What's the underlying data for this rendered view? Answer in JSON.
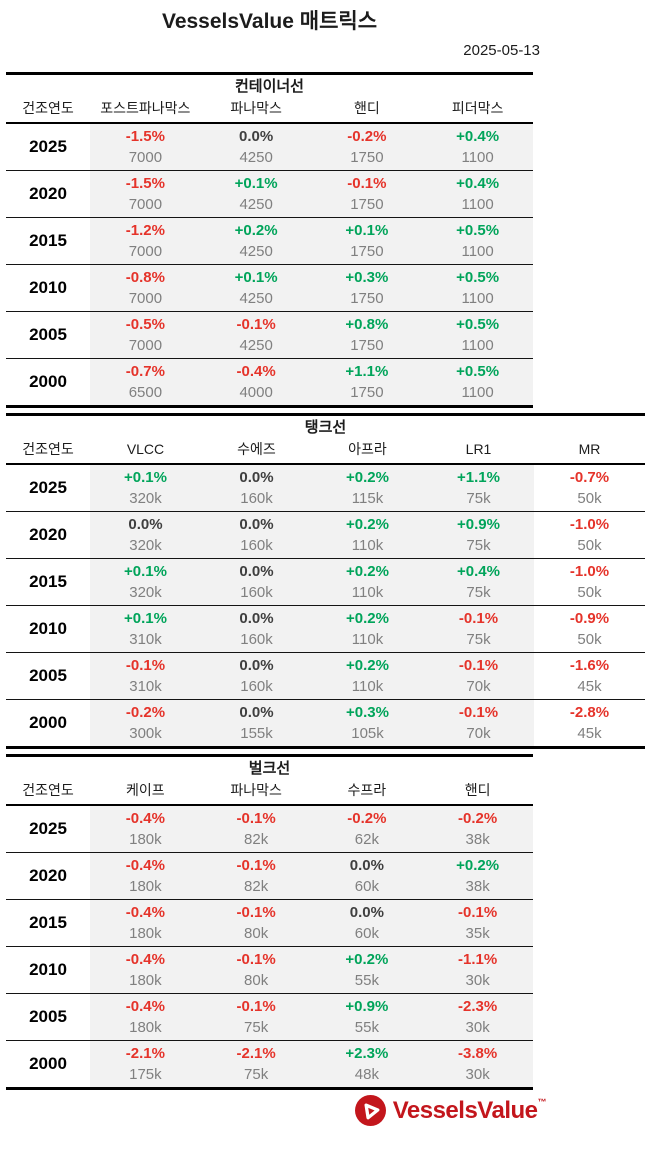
{
  "page": {
    "title": "VesselsValue 매트릭스",
    "date": "2025-05-13"
  },
  "colors": {
    "positive": "#00a45a",
    "negative": "#e5332a",
    "neutral": "#3f3f3f",
    "value_gray": "#808080",
    "row_background": "#f2f2f2",
    "logo_red": "#c3161c"
  },
  "tables": [
    {
      "section_title": "컨테이너선",
      "year_header": "건조연도",
      "columns": [
        "포스트파나막스",
        "파나막스",
        "핸디",
        "피더막스"
      ],
      "rows": [
        {
          "year": "2025",
          "cells": [
            [
              "-1.5%",
              "7000"
            ],
            [
              "0.0%",
              "4250"
            ],
            [
              "-0.2%",
              "1750"
            ],
            [
              "+0.4%",
              "1100"
            ]
          ]
        },
        {
          "year": "2020",
          "cells": [
            [
              "-1.5%",
              "7000"
            ],
            [
              "+0.1%",
              "4250"
            ],
            [
              "-0.1%",
              "1750"
            ],
            [
              "+0.4%",
              "1100"
            ]
          ]
        },
        {
          "year": "2015",
          "cells": [
            [
              "-1.2%",
              "7000"
            ],
            [
              "+0.2%",
              "4250"
            ],
            [
              "+0.1%",
              "1750"
            ],
            [
              "+0.5%",
              "1100"
            ]
          ]
        },
        {
          "year": "2010",
          "cells": [
            [
              "-0.8%",
              "7000"
            ],
            [
              "+0.1%",
              "4250"
            ],
            [
              "+0.3%",
              "1750"
            ],
            [
              "+0.5%",
              "1100"
            ]
          ]
        },
        {
          "year": "2005",
          "cells": [
            [
              "-0.5%",
              "7000"
            ],
            [
              "-0.1%",
              "4250"
            ],
            [
              "+0.8%",
              "1750"
            ],
            [
              "+0.5%",
              "1100"
            ]
          ]
        },
        {
          "year": "2000",
          "cells": [
            [
              "-0.7%",
              "6500"
            ],
            [
              "-0.4%",
              "4000"
            ],
            [
              "+1.1%",
              "1750"
            ],
            [
              "+0.5%",
              "1100"
            ]
          ]
        }
      ]
    },
    {
      "section_title": "탱크선",
      "year_header": "건조연도",
      "columns": [
        "VLCC",
        "수에즈",
        "아프라",
        "LR1",
        "MR"
      ],
      "rows": [
        {
          "year": "2025",
          "cells": [
            [
              "+0.1%",
              "320k"
            ],
            [
              "0.0%",
              "160k"
            ],
            [
              "+0.2%",
              "115k"
            ],
            [
              "+1.1%",
              "75k"
            ],
            [
              "-0.7%",
              "50k"
            ]
          ]
        },
        {
          "year": "2020",
          "cells": [
            [
              "0.0%",
              "320k"
            ],
            [
              "0.0%",
              "160k"
            ],
            [
              "+0.2%",
              "110k"
            ],
            [
              "+0.9%",
              "75k"
            ],
            [
              "-1.0%",
              "50k"
            ]
          ]
        },
        {
          "year": "2015",
          "cells": [
            [
              "+0.1%",
              "320k"
            ],
            [
              "0.0%",
              "160k"
            ],
            [
              "+0.2%",
              "110k"
            ],
            [
              "+0.4%",
              "75k"
            ],
            [
              "-1.0%",
              "50k"
            ]
          ]
        },
        {
          "year": "2010",
          "cells": [
            [
              "+0.1%",
              "310k"
            ],
            [
              "0.0%",
              "160k"
            ],
            [
              "+0.2%",
              "110k"
            ],
            [
              "-0.1%",
              "75k"
            ],
            [
              "-0.9%",
              "50k"
            ]
          ]
        },
        {
          "year": "2005",
          "cells": [
            [
              "-0.1%",
              "310k"
            ],
            [
              "0.0%",
              "160k"
            ],
            [
              "+0.2%",
              "110k"
            ],
            [
              "-0.1%",
              "70k"
            ],
            [
              "-1.6%",
              "45k"
            ]
          ]
        },
        {
          "year": "2000",
          "cells": [
            [
              "-0.2%",
              "300k"
            ],
            [
              "0.0%",
              "155k"
            ],
            [
              "+0.3%",
              "105k"
            ],
            [
              "-0.1%",
              "70k"
            ],
            [
              "-2.8%",
              "45k"
            ]
          ]
        }
      ]
    },
    {
      "section_title": "벌크선",
      "year_header": "건조연도",
      "columns": [
        "케이프",
        "파나막스",
        "수프라",
        "핸디"
      ],
      "rows": [
        {
          "year": "2025",
          "cells": [
            [
              "-0.4%",
              "180k"
            ],
            [
              "-0.1%",
              "82k"
            ],
            [
              "-0.2%",
              "62k"
            ],
            [
              "-0.2%",
              "38k"
            ]
          ]
        },
        {
          "year": "2020",
          "cells": [
            [
              "-0.4%",
              "180k"
            ],
            [
              "-0.1%",
              "82k"
            ],
            [
              "0.0%",
              "60k"
            ],
            [
              "+0.2%",
              "38k"
            ]
          ]
        },
        {
          "year": "2015",
          "cells": [
            [
              "-0.4%",
              "180k"
            ],
            [
              "-0.1%",
              "80k"
            ],
            [
              "0.0%",
              "60k"
            ],
            [
              "-0.1%",
              "35k"
            ]
          ]
        },
        {
          "year": "2010",
          "cells": [
            [
              "-0.4%",
              "180k"
            ],
            [
              "-0.1%",
              "80k"
            ],
            [
              "+0.2%",
              "55k"
            ],
            [
              "-1.1%",
              "30k"
            ]
          ]
        },
        {
          "year": "2005",
          "cells": [
            [
              "-0.4%",
              "180k"
            ],
            [
              "-0.1%",
              "75k"
            ],
            [
              "+0.9%",
              "55k"
            ],
            [
              "-2.3%",
              "30k"
            ]
          ]
        },
        {
          "year": "2000",
          "cells": [
            [
              "-2.1%",
              "175k"
            ],
            [
              "-2.1%",
              "75k"
            ],
            [
              "+2.3%",
              "48k"
            ],
            [
              "-3.8%",
              "30k"
            ]
          ]
        }
      ]
    }
  ],
  "logo": {
    "text": "VesselsValue",
    "tm": "™"
  }
}
